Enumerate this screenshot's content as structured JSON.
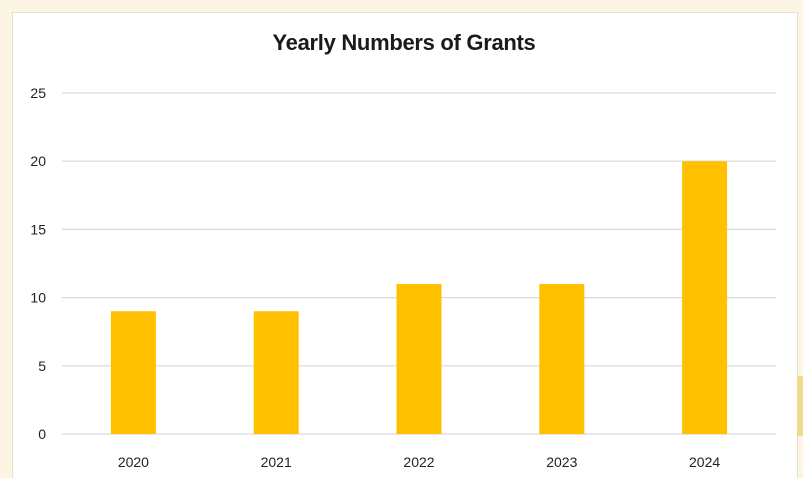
{
  "colors": {
    "bar": "#ffc000",
    "grid": "#d9d9d9",
    "background": "#fdf5e3",
    "plot": "#ffffff"
  },
  "chart_data": {
    "type": "bar",
    "title": "Yearly Numbers of Grants",
    "xlabel": "",
    "ylabel": "",
    "categories": [
      "2020",
      "2021",
      "2022",
      "2023",
      "2024"
    ],
    "values": [
      9,
      9,
      11,
      11,
      20
    ],
    "ylim": [
      0,
      25
    ],
    "yticks": [
      0,
      5,
      10,
      15,
      20,
      25
    ],
    "grid": true,
    "legend": "none"
  }
}
